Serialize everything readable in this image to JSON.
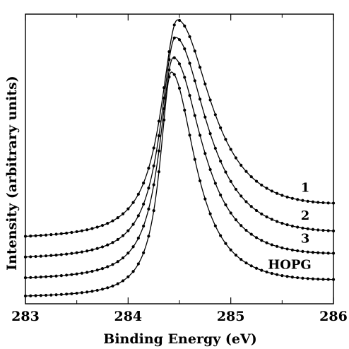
{
  "chart_data": {
    "type": "line",
    "xlabel": "Binding Energy (eV)",
    "ylabel": "Intensity (arbitrary units)",
    "xlim": [
      283,
      286
    ],
    "ylim": [
      0,
      1
    ],
    "xticks": [
      "283",
      "284",
      "285",
      "286"
    ],
    "y_ticks_shown": false,
    "grid": false,
    "legend": "none (curves labeled inline at right)",
    "series": [
      {
        "name": "1",
        "baseline": 0.22,
        "peak_x": 284.48,
        "peak_y": 0.98,
        "gamma": 0.26,
        "tail_at_286": 0.3
      },
      {
        "name": "2",
        "baseline": 0.15,
        "peak_x": 284.46,
        "peak_y": 0.92,
        "gamma": 0.24,
        "tail_at_286": 0.21
      },
      {
        "name": "3",
        "baseline": 0.08,
        "peak_x": 284.44,
        "peak_y": 0.85,
        "gamma": 0.22,
        "tail_at_286": 0.14
      },
      {
        "name": "HOPG",
        "baseline": 0.02,
        "peak_x": 284.42,
        "peak_y": 0.8,
        "gamma": 0.18,
        "tail_at_286": 0.06
      }
    ],
    "markers": "filled circles (data) with solid fit line"
  }
}
